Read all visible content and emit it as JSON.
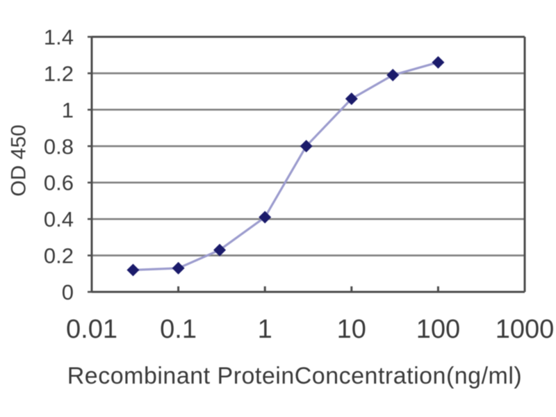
{
  "figure": {
    "x_axis_title": "Recombinant ProteinConcentration(ng/ml)",
    "y_axis_title": "OD 450"
  },
  "chart_data": {
    "type": "line",
    "title": "",
    "xlabel": "Recombinant ProteinConcentration(ng/ml)",
    "ylabel": "OD 450",
    "x_scale": "log",
    "x": [
      0.03,
      0.1,
      0.3,
      1,
      3,
      10,
      30,
      100
    ],
    "series": [
      {
        "name": "OD 450",
        "values": [
          0.12,
          0.13,
          0.23,
          0.41,
          0.8,
          1.06,
          1.19,
          1.26
        ]
      }
    ],
    "xlim": [
      0.01,
      1000
    ],
    "ylim": [
      0,
      1.4
    ],
    "x_ticks": [
      0.01,
      0.1,
      1,
      10,
      100,
      1000
    ],
    "x_tick_labels": [
      "0.01",
      "0.1",
      "1",
      "10",
      "100",
      "1000"
    ],
    "y_ticks": [
      0,
      0.2,
      0.4,
      0.6,
      0.8,
      1,
      1.2,
      1.4
    ],
    "y_tick_labels": [
      "0",
      "0.2",
      "0.4",
      "0.6",
      "0.8",
      "1",
      "1.2",
      "1.4"
    ],
    "grid": "horizontal",
    "legend_position": "none",
    "marker": "diamond",
    "colors": {
      "line": "#9C9CCE",
      "marker": "#1B1B6B",
      "grid": "#7F7F7F",
      "axis": "#4D4D4D",
      "text": "#3A3A3A",
      "background": "#FFFFFF"
    }
  }
}
